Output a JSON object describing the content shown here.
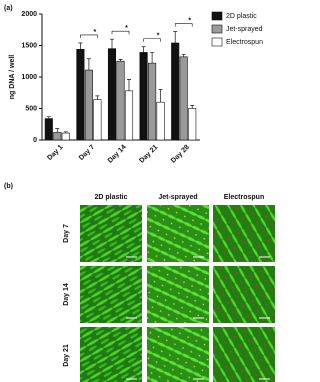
{
  "panel_a": {
    "label": "(a)"
  },
  "chart_data": {
    "type": "bar",
    "y_label": "ng DNA / well",
    "categories": [
      "Day 1",
      "Day 7",
      "Day 14",
      "Day 21",
      "Day 28"
    ],
    "series": [
      {
        "name": "2D plastic",
        "color": "#111111",
        "values": [
          340,
          1440,
          1450,
          1390,
          1540
        ],
        "errors": [
          30,
          100,
          150,
          90,
          180
        ]
      },
      {
        "name": "Jet-sprayed",
        "color": "#9a9a9a",
        "values": [
          120,
          1110,
          1250,
          1220,
          1320
        ],
        "errors": [
          60,
          180,
          30,
          170,
          40
        ]
      },
      {
        "name": "Electrospun",
        "color": "#ffffff",
        "values": [
          110,
          640,
          780,
          600,
          500
        ],
        "errors": [
          20,
          60,
          180,
          200,
          50
        ]
      }
    ],
    "ylim": [
      0,
      2000
    ],
    "yticks": [
      0,
      500,
      1000,
      1500,
      2000
    ],
    "annotations": [
      "*",
      "*",
      "*",
      "*"
    ],
    "legend": "upper right"
  },
  "panel_b": {
    "label": "(b)",
    "columns": [
      "2D plastic",
      "Jet-sprayed",
      "Electrospun"
    ],
    "rows": [
      "Day 7",
      "Day 14",
      "Day 21"
    ]
  }
}
